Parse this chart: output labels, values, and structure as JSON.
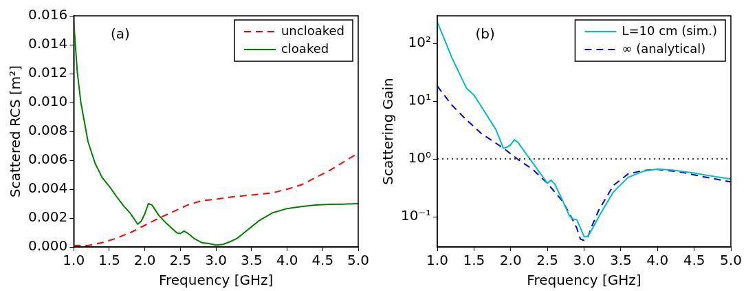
{
  "chart_data": [
    {
      "type": "line",
      "xlabel": "Frequency [GHz]",
      "ylabel": "Scattered RCS [m²]",
      "annotations": [
        "(a)"
      ],
      "legend": "top right",
      "xlim": [
        1,
        5
      ],
      "ylim": [
        0,
        0.016
      ],
      "xticks": [
        {
          "value": 1,
          "label": "1.0"
        },
        {
          "value": 1.5,
          "label": "1.5"
        },
        {
          "value": 2,
          "label": "2.0"
        },
        {
          "value": 2.5,
          "label": "2.5"
        },
        {
          "value": 3,
          "label": "3.0"
        },
        {
          "value": 3.5,
          "label": "3.5"
        },
        {
          "value": 4,
          "label": "4.0"
        },
        {
          "value": 4.5,
          "label": "4.5"
        },
        {
          "value": 5,
          "label": "5.0"
        }
      ],
      "yticks": [
        {
          "value": 0,
          "label": "0.000"
        },
        {
          "value": 0.002,
          "label": "0.002"
        },
        {
          "value": 0.004,
          "label": "0.004"
        },
        {
          "value": 0.006,
          "label": "0.006"
        },
        {
          "value": 0.008,
          "label": "0.008"
        },
        {
          "value": 0.01,
          "label": "0.010"
        },
        {
          "value": 0.012,
          "label": "0.012"
        },
        {
          "value": 0.014,
          "label": "0.014"
        },
        {
          "value": 0.016,
          "label": "0.016"
        }
      ],
      "series": [
        {
          "name": "uncloaked",
          "color": "#ff0000",
          "line_style": "dashed",
          "x": [
            1,
            1.2,
            1.4,
            1.6,
            1.8,
            2,
            2.2,
            2.4,
            2.6,
            2.8,
            3,
            3.2,
            3.5,
            3.8,
            4,
            4.2,
            4.4,
            4.6,
            4.8,
            5
          ],
          "values": [
            0.0001,
            0.0001,
            0.0003,
            0.0006,
            0.001,
            0.0015,
            0.002,
            0.00245,
            0.0029,
            0.0032,
            0.0033,
            0.00345,
            0.0036,
            0.00375,
            0.004,
            0.0043,
            0.0048,
            0.0053,
            0.0059,
            0.0065
          ]
        },
        {
          "name": "cloaked",
          "color": "#008000",
          "line_style": "solid",
          "x": [
            1,
            1.05,
            1.1,
            1.2,
            1.3,
            1.4,
            1.5,
            1.6,
            1.7,
            1.8,
            1.9,
            1.95,
            2,
            2.05,
            2.1,
            2.2,
            2.3,
            2.4,
            2.45,
            2.5,
            2.55,
            2.6,
            2.7,
            2.8,
            2.9,
            3,
            3.1,
            3.2,
            3.3,
            3.4,
            3.5,
            3.6,
            3.8,
            4,
            4.2,
            4.4,
            4.6,
            4.8,
            5
          ],
          "values": [
            0.0156,
            0.0121,
            0.01,
            0.0073,
            0.0058,
            0.0048,
            0.0042,
            0.0035,
            0.00285,
            0.0023,
            0.00157,
            0.0018,
            0.0023,
            0.003,
            0.0029,
            0.00216,
            0.00165,
            0.0012,
            0.00098,
            0.00093,
            0.0011,
            0.00096,
            0.00056,
            0.0003,
            0.00024,
            0.00013,
            0.00018,
            0.00037,
            0.0006,
            0.001,
            0.0014,
            0.0018,
            0.00237,
            0.00266,
            0.0028,
            0.0029,
            0.00295,
            0.00297,
            0.003
          ]
        }
      ]
    },
    {
      "type": "line",
      "xlabel": "Frequency [GHz]",
      "ylabel": "Scattering Gain",
      "annotations": [
        "(b)"
      ],
      "legend": "top right",
      "log": "y",
      "xlim": [
        1,
        5
      ],
      "ylim": [
        0.03,
        300
      ],
      "xticks": [
        {
          "value": 1,
          "label": "1.0"
        },
        {
          "value": 1.5,
          "label": "1.5"
        },
        {
          "value": 2,
          "label": "2.0"
        },
        {
          "value": 2.5,
          "label": "2.5"
        },
        {
          "value": 3,
          "label": "3.0"
        },
        {
          "value": 3.5,
          "label": "3.5"
        },
        {
          "value": 4,
          "label": "4.0"
        },
        {
          "value": 4.5,
          "label": "4.5"
        },
        {
          "value": 5,
          "label": "5.0"
        }
      ],
      "yticks": [
        {
          "value": 0.1,
          "label": "10⁻¹"
        },
        {
          "value": 1,
          "label": "10⁰"
        },
        {
          "value": 10,
          "label": "10¹"
        },
        {
          "value": 100,
          "label": "10²"
        }
      ],
      "ref_lines": [
        {
          "axis": "y",
          "value": 1,
          "color": "#000000",
          "line_style": "dotted"
        }
      ],
      "series": [
        {
          "name": "L=10 cm (sim.)",
          "color": "#00bfbf",
          "line_style": "solid",
          "x": [
            1,
            1.2,
            1.4,
            1.5,
            1.6,
            1.8,
            1.9,
            1.95,
            2,
            2.05,
            2.1,
            2.2,
            2.3,
            2.4,
            2.5,
            2.55,
            2.6,
            2.7,
            2.8,
            2.85,
            2.9,
            2.95,
            3,
            3.05,
            3.1,
            3.2,
            3.4,
            3.6,
            3.8,
            4,
            4.2,
            4.5,
            4.8,
            5
          ],
          "values": [
            235,
            56,
            16.6,
            12.7,
            8.1,
            3.2,
            1.54,
            1.6,
            1.76,
            2.15,
            1.93,
            1.28,
            0.86,
            0.57,
            0.38,
            0.43,
            0.37,
            0.2,
            0.104,
            0.091,
            0.089,
            0.064,
            0.045,
            0.046,
            0.058,
            0.1,
            0.27,
            0.48,
            0.61,
            0.67,
            0.64,
            0.57,
            0.49,
            0.45
          ]
        },
        {
          "name": "∞ (analytical)",
          "color": "#0000ff",
          "line_style": "dashed",
          "x": [
            1,
            1.2,
            1.4,
            1.6,
            1.9,
            2.1,
            2.3,
            2.5,
            2.7,
            2.8,
            2.9,
            2.95,
            3,
            3.05,
            3.1,
            3.2,
            3.4,
            3.6,
            3.8,
            4,
            4.3,
            4.6,
            5
          ],
          "values": [
            18.2,
            8.5,
            4.7,
            2.76,
            1.54,
            0.98,
            0.66,
            0.38,
            0.19,
            0.114,
            0.064,
            0.041,
            0.039,
            0.044,
            0.066,
            0.13,
            0.35,
            0.55,
            0.63,
            0.66,
            0.6,
            0.5,
            0.4
          ]
        }
      ]
    }
  ]
}
